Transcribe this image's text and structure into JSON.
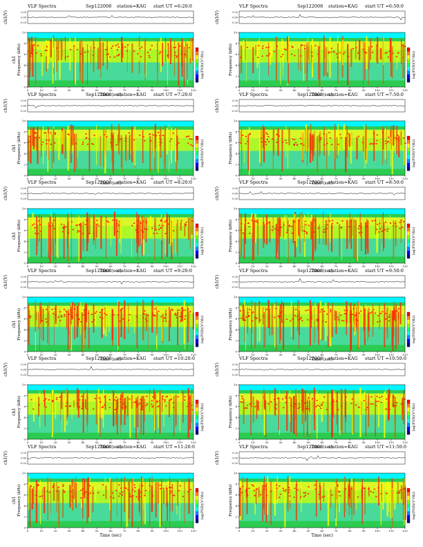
{
  "colors": {
    "background": "#00ffff",
    "low": "#00c8ff",
    "mid": "#33cc33",
    "high_a": "#ccff00",
    "high_b": "#ffff00",
    "peak": "#ff2200",
    "trace": "#000000",
    "colorbar": [
      "#ff0000",
      "#ff8800",
      "#ffff00",
      "#88ff00",
      "#00ff88",
      "#00ffff",
      "#0088ff",
      "#0000ff",
      "#000080"
    ]
  },
  "chart_data": [
    {
      "type": "heatmap",
      "label_left": "VLF Spectra",
      "date": "Sep122008",
      "station": "station=KAG",
      "start": "start UT =6:20:0",
      "ch_label": "ch1(V)",
      "ch_ticks": [
        "0.20",
        "0.00",
        "-0.20"
      ],
      "ylabel": "Frequency (kHz)",
      "ylabel_ch": "ch1",
      "yticks": [
        "0",
        "2",
        "4",
        "6",
        "8",
        "10"
      ],
      "xticks": [
        "0",
        "10",
        "20",
        "30",
        "40",
        "50",
        "60",
        "70",
        "80",
        "90",
        "100",
        "110",
        "120"
      ],
      "xlabel": "Time (sec)",
      "cb_label": "log(PSD)(V²/Hz)",
      "ylim": [
        0,
        10
      ],
      "xlim": [
        0,
        120
      ],
      "intensity": 0.55
    },
    {
      "type": "heatmap",
      "label_left": "VLF Spectra",
      "date": "Sep122008",
      "station": "station=KAG",
      "start": "start UT =6:50:0",
      "ch_label": "ch1(V)",
      "ch_ticks": [
        "0.20",
        "0.00",
        "-0.20"
      ],
      "ylabel": "Frequency (kHz)",
      "ylabel_ch": "",
      "yticks": [
        "0",
        "2",
        "4",
        "6",
        "8",
        "10"
      ],
      "xticks": [
        "0",
        "10",
        "20",
        "30",
        "40",
        "50",
        "60",
        "70",
        "80",
        "90",
        "100",
        "110",
        "120"
      ],
      "xlabel": "Time (sec)",
      "cb_label": "log(PSD)(V²/Hz)",
      "ylim": [
        0,
        10
      ],
      "xlim": [
        0,
        120
      ],
      "intensity": 0.55
    },
    {
      "type": "heatmap",
      "label_left": "VLF Spectra",
      "date": "Sep122008",
      "station": "station=KAG",
      "start": "start UT =7:20:0",
      "ch_label": "ch1(V)",
      "ch_ticks": [
        "0.20",
        "0.00",
        "-0.20"
      ],
      "ylabel": "Frequency (kHz)",
      "ylabel_ch": "ch1",
      "yticks": [
        "0",
        "2",
        "4",
        "6",
        "8",
        "10"
      ],
      "xticks": [
        "0",
        "10",
        "20",
        "30",
        "40",
        "50",
        "60",
        "70",
        "80",
        "90",
        "100",
        "110",
        "120"
      ],
      "xlabel": "Time (sec)",
      "cb_label": "log(PSD)(V²/Hz)",
      "ylim": [
        0,
        10
      ],
      "xlim": [
        0,
        120
      ],
      "intensity": 0.6
    },
    {
      "type": "heatmap",
      "label_left": "VLF Spectra",
      "date": "Sep122008",
      "station": "station=KAG",
      "start": "start UT =7:50:0",
      "ch_label": "ch1(V)",
      "ch_ticks": [
        "0.20",
        "0.00",
        "-0.20"
      ],
      "ylabel": "Frequency (kHz)",
      "ylabel_ch": "",
      "yticks": [
        "0",
        "2",
        "4",
        "6",
        "8",
        "10"
      ],
      "xticks": [
        "0",
        "10",
        "20",
        "30",
        "40",
        "50",
        "60",
        "70",
        "80",
        "90",
        "100",
        "110",
        "120"
      ],
      "xlabel": "Time (sec)",
      "cb_label": "log(PSD)(V²/Hz)",
      "ylim": [
        0,
        10
      ],
      "xlim": [
        0,
        120
      ],
      "intensity": 0.6
    },
    {
      "type": "heatmap",
      "label_left": "VLF Spectra",
      "date": "Sep122008",
      "station": "station=KAG",
      "start": "start UT =8:20:0",
      "ch_label": "ch1(V)",
      "ch_ticks": [
        "0.20",
        "0.00",
        "-0.20"
      ],
      "ylabel": "Frequency (kHz)",
      "ylabel_ch": "ch1",
      "yticks": [
        "0",
        "2",
        "4",
        "6",
        "8",
        "10"
      ],
      "xticks": [
        "0",
        "10",
        "20",
        "30",
        "40",
        "50",
        "60",
        "70",
        "80",
        "90",
        "100",
        "110",
        "120"
      ],
      "xlabel": "Time (sec)",
      "cb_label": "log(PSD)(V²/Hz)",
      "ylim": [
        0,
        10
      ],
      "xlim": [
        0,
        120
      ],
      "intensity": 0.65
    },
    {
      "type": "heatmap",
      "label_left": "VLF Spectra",
      "date": "Sep122008",
      "station": "station=KAG",
      "start": "start UT =8:50:0",
      "ch_label": "ch1(V)",
      "ch_ticks": [
        "0.20",
        "0.00",
        "-0.20"
      ],
      "ylabel": "Frequency (kHz)",
      "ylabel_ch": "",
      "yticks": [
        "0",
        "2",
        "4",
        "6",
        "8",
        "10"
      ],
      "xticks": [
        "0",
        "10",
        "20",
        "30",
        "40",
        "50",
        "60",
        "70",
        "80",
        "90",
        "100",
        "110",
        "120"
      ],
      "xlabel": "Time (sec)",
      "cb_label": "log(PSD)(V²/Hz)",
      "ylim": [
        0,
        10
      ],
      "xlim": [
        0,
        120
      ],
      "intensity": 0.72
    },
    {
      "type": "heatmap",
      "label_left": "VLF Spectra",
      "date": "Sep122008",
      "station": "station=KAG",
      "start": "start UT =9:20:0",
      "ch_label": "ch1(V)",
      "ch_ticks": [
        "0.20",
        "0.00",
        "-0.20"
      ],
      "ylabel": "Frequency (kHz)",
      "ylabel_ch": "ch1",
      "yticks": [
        "0",
        "2",
        "4",
        "6",
        "8",
        "10"
      ],
      "xticks": [
        "0",
        "10",
        "20",
        "30",
        "40",
        "50",
        "60",
        "70",
        "80",
        "90",
        "100",
        "110",
        "120"
      ],
      "xlabel": "Time (sec)",
      "cb_label": "log(PSD)(V²/Hz)",
      "ylim": [
        0,
        10
      ],
      "xlim": [
        0,
        120
      ],
      "intensity": 0.8
    },
    {
      "type": "heatmap",
      "label_left": "VLF Spectra",
      "date": "Sep122008",
      "station": "station=KAG",
      "start": "start UT =9:50:0",
      "ch_label": "ch1(V)",
      "ch_ticks": [
        "0.20",
        "0.00",
        "-0.20"
      ],
      "ylabel": "Frequency (kHz)",
      "ylabel_ch": "",
      "yticks": [
        "0",
        "2",
        "4",
        "6",
        "8",
        "10"
      ],
      "xticks": [
        "0",
        "10",
        "20",
        "30",
        "40",
        "50",
        "60",
        "70",
        "80",
        "90",
        "100",
        "110",
        "120"
      ],
      "xlabel": "Time (sec)",
      "cb_label": "log(PSD)(V²/Hz)",
      "ylim": [
        0,
        10
      ],
      "xlim": [
        0,
        120
      ],
      "intensity": 0.8
    },
    {
      "type": "heatmap",
      "label_left": "VLF Spectra",
      "date": "Sep122008",
      "station": "station=KAG",
      "start": "start UT =10:20:0",
      "ch_label": "ch1(V)",
      "ch_ticks": [
        "0.20",
        "0.00",
        "-0.20"
      ],
      "ylabel": "Frequency (kHz)",
      "ylabel_ch": "ch1",
      "yticks": [
        "0",
        "2",
        "4",
        "6",
        "8",
        "10"
      ],
      "xticks": [
        "0",
        "10",
        "20",
        "30",
        "40",
        "50",
        "60",
        "70",
        "80",
        "90",
        "100",
        "110",
        "120"
      ],
      "xlabel": "Time (sec)",
      "cb_label": "log(PSD)(V²/Hz)",
      "ylim": [
        0,
        10
      ],
      "xlim": [
        0,
        120
      ],
      "intensity": 0.75
    },
    {
      "type": "heatmap",
      "label_left": "VLF Spectra",
      "date": "Sep122008",
      "station": "station=KAG",
      "start": "start UT =10:50:0",
      "ch_label": "ch1(V)",
      "ch_ticks": [
        "0.20",
        "0.00",
        "-0.20"
      ],
      "ylabel": "Frequency (kHz)",
      "ylabel_ch": "",
      "yticks": [
        "0",
        "2",
        "4",
        "6",
        "8",
        "10"
      ],
      "xticks": [
        "0",
        "10",
        "20",
        "30",
        "40",
        "50",
        "60",
        "70",
        "80",
        "90",
        "100",
        "110",
        "120"
      ],
      "xlabel": "Time (sec)",
      "cb_label": "log(PSD)(V²/Hz)",
      "ylim": [
        0,
        10
      ],
      "xlim": [
        0,
        120
      ],
      "intensity": 0.72
    },
    {
      "type": "heatmap",
      "label_left": "VLF Spectra",
      "date": "Sep122008",
      "station": "station=KAG",
      "start": "start UT =11:20:0",
      "ch_label": "ch1(V)",
      "ch_ticks": [
        "0.20",
        "0.00",
        "-0.20"
      ],
      "ylabel": "Frequency (kHz)",
      "ylabel_ch": "ch1",
      "yticks": [
        "0",
        "2",
        "4",
        "6",
        "8",
        "10"
      ],
      "xticks": [
        "0",
        "10",
        "20",
        "30",
        "40",
        "50",
        "60",
        "70",
        "80",
        "90",
        "100",
        "110",
        "120"
      ],
      "xlabel": "Time (sec)",
      "cb_label": "log(PSD)(V²/Hz)",
      "ylim": [
        0,
        10
      ],
      "xlim": [
        0,
        120
      ],
      "intensity": 0.65
    },
    {
      "type": "heatmap",
      "label_left": "VLF Spectra",
      "date": "Sep122008",
      "station": "station=KAG",
      "start": "start UT =11:50:0",
      "ch_label": "ch1(V)",
      "ch_ticks": [
        "0.20",
        "0.00",
        "-0.20"
      ],
      "ylabel": "Frequency (kHz)",
      "ylabel_ch": "",
      "yticks": [
        "0",
        "2",
        "4",
        "6",
        "8",
        "10"
      ],
      "xticks": [
        "0",
        "10",
        "20",
        "30",
        "40",
        "50",
        "60",
        "70",
        "80",
        "90",
        "100",
        "110",
        "120"
      ],
      "xlabel": "Time (sec)",
      "cb_label": "log(PSD)(V²/Hz)",
      "ylim": [
        0,
        10
      ],
      "xlim": [
        0,
        120
      ],
      "intensity": 0.65
    }
  ]
}
